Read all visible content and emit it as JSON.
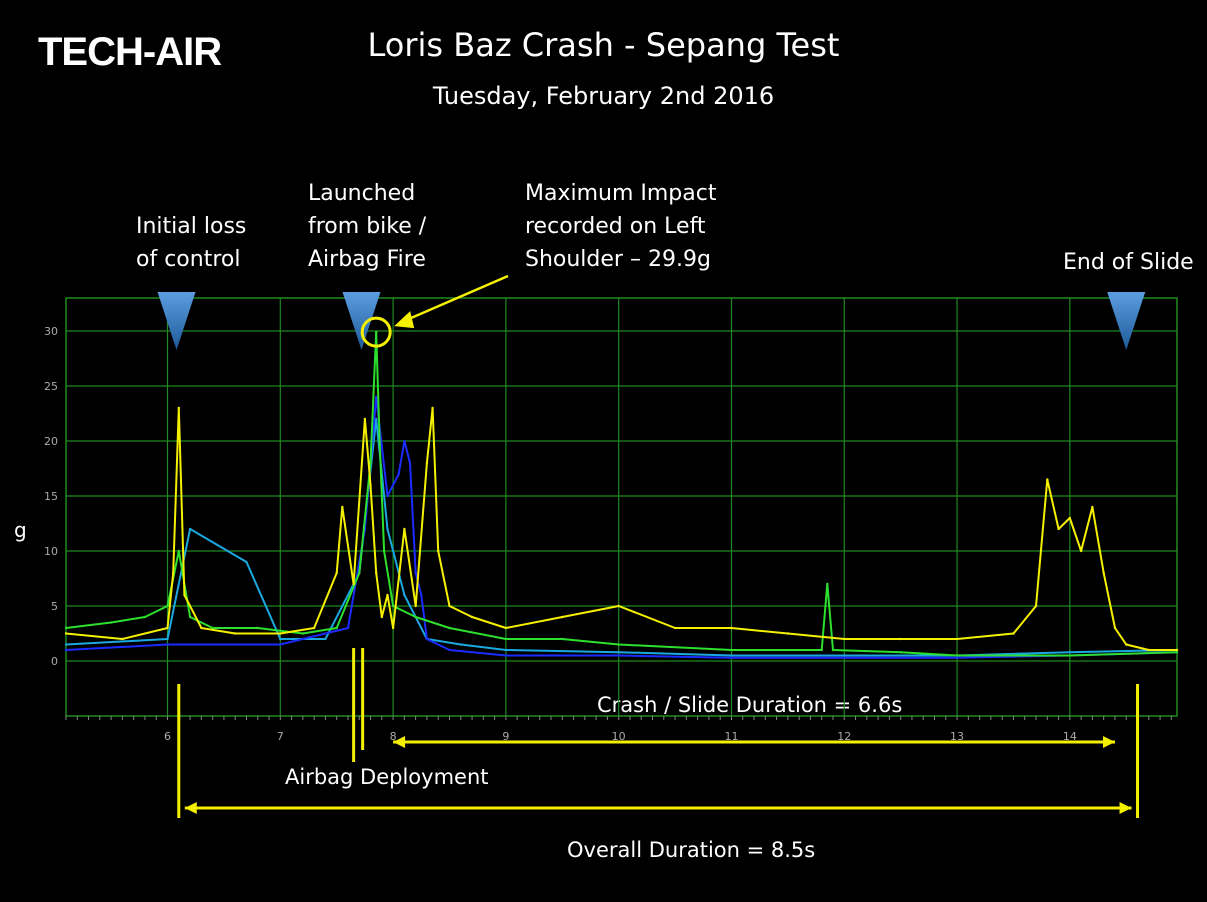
{
  "logo": {
    "text": "TECH-AIR"
  },
  "header": {
    "title": "Loris Baz Crash - Sepang Test",
    "subtitle": "Tuesday, February 2nd 2016"
  },
  "annotations": {
    "initial_loss": "Initial loss\nof control",
    "launched": "Launched\nfrom bike /\nAirbag Fire",
    "max_impact": "Maximum Impact\nrecorded on Left\nShoulder – 29.9g",
    "end_slide": "End of Slide",
    "airbag_deployment": "Airbag Deployment",
    "crash_duration": "Crash / Slide Duration = 6.6s",
    "overall_duration": "Overall Duration = 8.5s"
  },
  "colors": {
    "background": "#000000",
    "grid": "#1f8a1f",
    "yellow": "#f5f000",
    "green": "#2ee02e",
    "blue": "#1a2cff",
    "cyan": "#1aa8e0",
    "marker": "#3a7fc8",
    "annotation_line": "#f5f000"
  },
  "chart_data": {
    "type": "line",
    "title": "Loris Baz Crash - Sepang Test",
    "xlabel": "",
    "ylabel": "g",
    "xlim": [
      5.1,
      14.95
    ],
    "ylim": [
      -5,
      33
    ],
    "grid": true,
    "x_ticks": [
      6,
      7,
      8,
      9,
      10,
      11,
      12,
      13,
      14
    ],
    "y_ticks": [
      0,
      5,
      10,
      15,
      20,
      25,
      30
    ],
    "series": [
      {
        "color": "yellow",
        "x": [
          5.1,
          5.6,
          6.0,
          6.05,
          6.1,
          6.15,
          6.3,
          6.6,
          7.0,
          7.3,
          7.5,
          7.55,
          7.65,
          7.75,
          7.8,
          7.85,
          7.9,
          7.95,
          8.0,
          8.1,
          8.2,
          8.3,
          8.35,
          8.4,
          8.5,
          8.7,
          9.0,
          9.5,
          10.0,
          10.5,
          11.0,
          11.5,
          12.0,
          12.5,
          13.0,
          13.5,
          13.7,
          13.8,
          13.9,
          14.0,
          14.1,
          14.2,
          14.3,
          14.4,
          14.5,
          14.7,
          14.95
        ],
        "values": [
          2.5,
          2.0,
          3.0,
          8.0,
          23.0,
          6.0,
          3.0,
          2.5,
          2.5,
          3.0,
          8.0,
          14.0,
          7.0,
          22.0,
          16.0,
          8.0,
          4.0,
          6.0,
          3.0,
          12.0,
          5.0,
          18.0,
          23.0,
          10.0,
          5.0,
          4.0,
          3.0,
          4.0,
          5.0,
          3.0,
          3.0,
          2.5,
          2.0,
          2.0,
          2.0,
          2.5,
          5.0,
          16.5,
          12.0,
          13.0,
          10.0,
          14.0,
          8.0,
          3.0,
          1.5,
          1.0,
          1.0
        ]
      },
      {
        "color": "green",
        "x": [
          5.1,
          5.5,
          5.8,
          6.0,
          6.1,
          6.2,
          6.4,
          6.8,
          7.2,
          7.5,
          7.7,
          7.8,
          7.85,
          7.88,
          7.92,
          8.0,
          8.2,
          8.5,
          9.0,
          9.5,
          10.0,
          11.0,
          11.8,
          11.85,
          11.9,
          12.5,
          13.0,
          14.0,
          14.95
        ],
        "values": [
          3.0,
          3.5,
          4.0,
          5.0,
          10.0,
          4.0,
          3.0,
          3.0,
          2.5,
          3.0,
          8.0,
          18.0,
          29.9,
          20.0,
          10.0,
          5.0,
          4.0,
          3.0,
          2.0,
          2.0,
          1.5,
          1.0,
          1.0,
          7.0,
          1.0,
          0.8,
          0.5,
          0.5,
          0.8
        ]
      },
      {
        "color": "blue",
        "x": [
          5.1,
          6.0,
          7.0,
          7.6,
          7.75,
          7.85,
          7.95,
          8.05,
          8.1,
          8.15,
          8.2,
          8.25,
          8.3,
          8.5,
          9.0,
          10.0,
          11.0,
          12.0,
          13.0,
          14.0,
          14.95
        ],
        "values": [
          1.0,
          1.5,
          1.5,
          3.0,
          12.0,
          24.0,
          15.0,
          17.0,
          20.0,
          18.0,
          8.0,
          6.0,
          2.0,
          1.0,
          0.5,
          0.5,
          0.3,
          0.3,
          0.3,
          0.5,
          0.8
        ]
      },
      {
        "color": "cyan",
        "x": [
          5.1,
          6.0,
          6.2,
          6.7,
          7.0,
          7.4,
          7.7,
          7.85,
          7.95,
          8.1,
          8.3,
          8.6,
          9.0,
          10.0,
          11.0,
          12.0,
          13.0,
          14.0,
          14.95
        ],
        "values": [
          1.5,
          2.0,
          12.0,
          9.0,
          2.0,
          2.0,
          8.0,
          22.0,
          12.0,
          6.0,
          2.0,
          1.5,
          1.0,
          0.8,
          0.5,
          0.5,
          0.5,
          0.8,
          1.0
        ]
      }
    ]
  }
}
